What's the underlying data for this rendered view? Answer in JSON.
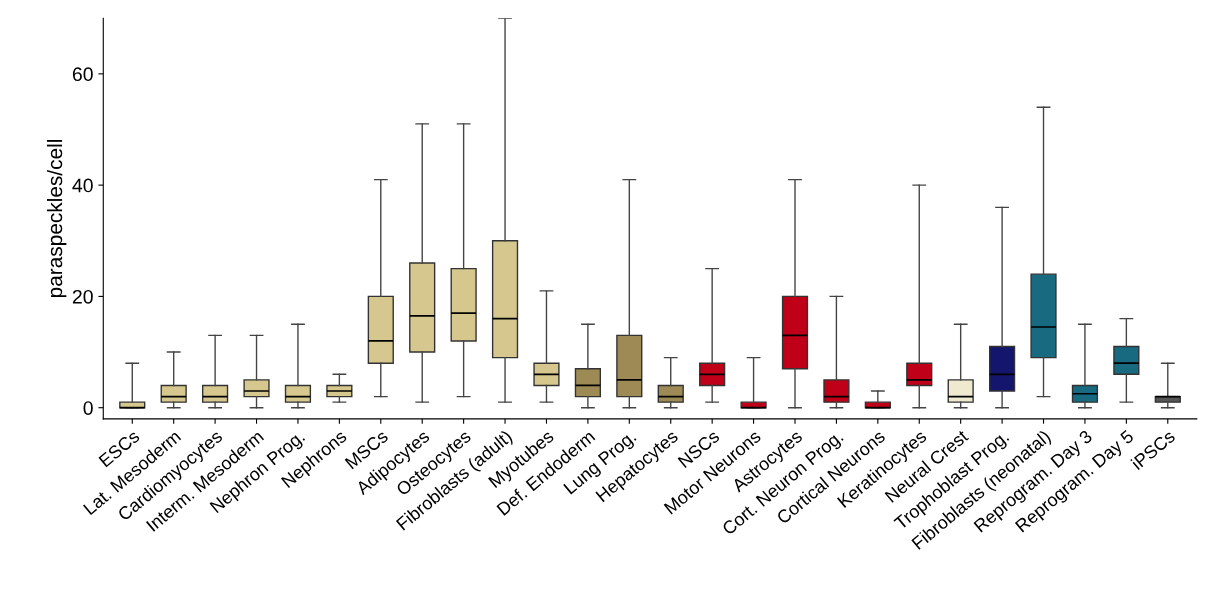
{
  "chart_data": {
    "type": "box",
    "ylabel": "paraspeckles/cell",
    "ylim": [
      -2,
      70
    ],
    "yticks": [
      0,
      20,
      40,
      60
    ],
    "grid": false,
    "categories": [
      "ESCs",
      "Lat. Mesoderm",
      "Cardiomyocytes",
      "Interm. Mesoderm",
      "Nephron Prog.",
      "Nephrons",
      "MSCs",
      "Adipocytes",
      "Osteocytes",
      "Fibroblasts (adult)",
      "Myotubes",
      "Def. Endoderm",
      "Lung Prog.",
      "Hepatocytes",
      "NSCs",
      "Motor Neurons",
      "Astrocytes",
      "Cort. Neuron Prog.",
      "Cortical Neurons",
      "Keratinocytes",
      "Neural Crest",
      "Trophoblast Prog.",
      "Fibroblasts (neonatal)",
      "Reprogram. Day 3",
      "Reprogram. Day 5",
      "iPSCs"
    ],
    "colors": [
      "#d6c78f",
      "#d6c78f",
      "#d6c78f",
      "#d6c78f",
      "#d6c78f",
      "#d6c78f",
      "#d6c78f",
      "#d6c78f",
      "#d6c78f",
      "#d6c78f",
      "#d6c78f",
      "#9d8a55",
      "#9d8a55",
      "#9d8a55",
      "#c00018",
      "#c00018",
      "#c00018",
      "#c00018",
      "#c00018",
      "#c00018",
      "#efe9d0",
      "#14166e",
      "#176a80",
      "#176a80",
      "#176a80",
      "#555555"
    ],
    "boxes": [
      {
        "low": 0,
        "q1": 0,
        "median": 0,
        "q3": 1,
        "high": 8
      },
      {
        "low": 0,
        "q1": 1,
        "median": 2,
        "q3": 4,
        "high": 10
      },
      {
        "low": 0,
        "q1": 1,
        "median": 2,
        "q3": 4,
        "high": 13
      },
      {
        "low": 0,
        "q1": 2,
        "median": 3,
        "q3": 5,
        "high": 13
      },
      {
        "low": 0,
        "q1": 1,
        "median": 2,
        "q3": 4,
        "high": 15
      },
      {
        "low": 1,
        "q1": 2,
        "median": 3,
        "q3": 4,
        "high": 6
      },
      {
        "low": 2,
        "q1": 8,
        "median": 12,
        "q3": 20,
        "high": 41
      },
      {
        "low": 1,
        "q1": 10,
        "median": 16.5,
        "q3": 26,
        "high": 51
      },
      {
        "low": 2,
        "q1": 12,
        "median": 17,
        "q3": 25,
        "high": 51
      },
      {
        "low": 1,
        "q1": 9,
        "median": 16,
        "q3": 30,
        "high": 70
      },
      {
        "low": 1,
        "q1": 4,
        "median": 6,
        "q3": 8,
        "high": 21
      },
      {
        "low": 0,
        "q1": 2,
        "median": 4,
        "q3": 7,
        "high": 15
      },
      {
        "low": 0,
        "q1": 2,
        "median": 5,
        "q3": 13,
        "high": 41
      },
      {
        "low": 0,
        "q1": 1,
        "median": 2,
        "q3": 4,
        "high": 9
      },
      {
        "low": 1,
        "q1": 4,
        "median": 6,
        "q3": 8,
        "high": 25
      },
      {
        "low": 0,
        "q1": 0,
        "median": 0,
        "q3": 1,
        "high": 9
      },
      {
        "low": 0,
        "q1": 7,
        "median": 13,
        "q3": 20,
        "high": 41
      },
      {
        "low": 0,
        "q1": 1,
        "median": 2,
        "q3": 5,
        "high": 20
      },
      {
        "low": 0,
        "q1": 0,
        "median": 0,
        "q3": 1,
        "high": 3
      },
      {
        "low": 0,
        "q1": 4,
        "median": 5,
        "q3": 8,
        "high": 40
      },
      {
        "low": 0,
        "q1": 1,
        "median": 2,
        "q3": 5,
        "high": 15
      },
      {
        "low": 0,
        "q1": 3,
        "median": 6,
        "q3": 11,
        "high": 36
      },
      {
        "low": 2,
        "q1": 9,
        "median": 14.5,
        "q3": 24,
        "high": 54
      },
      {
        "low": 0,
        "q1": 1,
        "median": 2.5,
        "q3": 4,
        "high": 15
      },
      {
        "low": 1,
        "q1": 6,
        "median": 8,
        "q3": 11,
        "high": 16
      },
      {
        "low": 0,
        "q1": 1,
        "median": 2,
        "q3": 2,
        "high": 8
      }
    ]
  }
}
